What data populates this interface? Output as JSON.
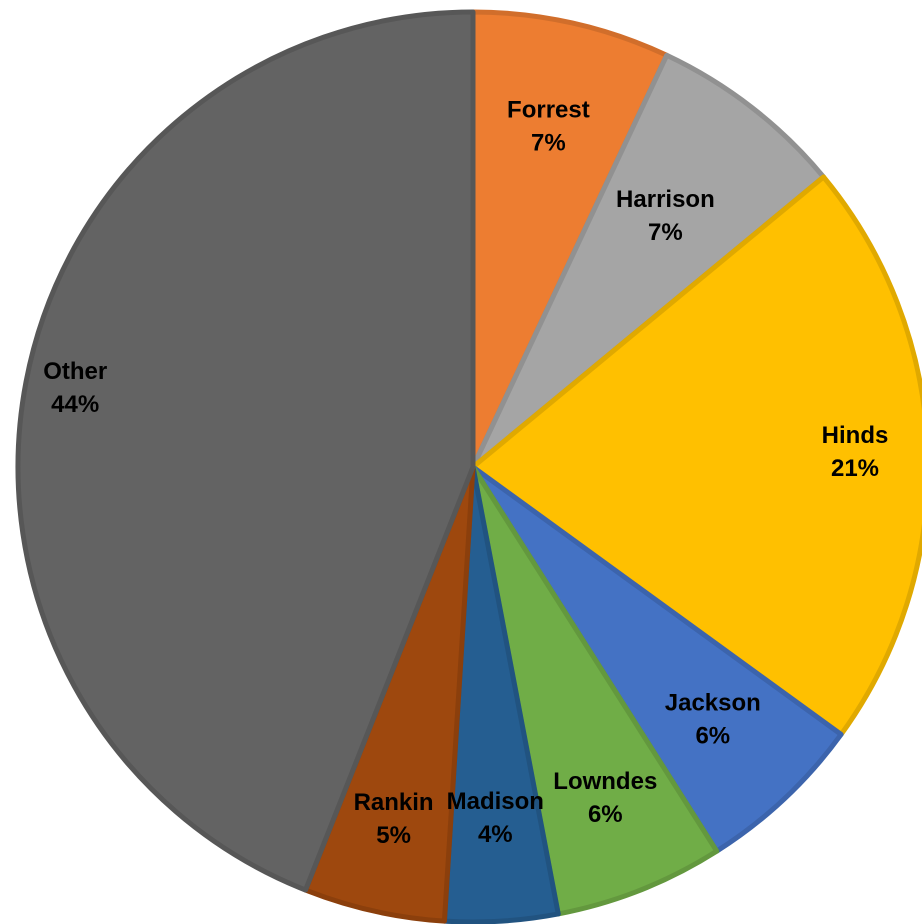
{
  "chart_data": {
    "type": "pie",
    "categories": [
      "Forrest",
      "Harrison",
      "Hinds",
      "Jackson",
      "Lowndes",
      "Madison",
      "Rankin",
      "Other"
    ],
    "values": [
      7,
      7,
      21,
      6,
      6,
      4,
      5,
      44
    ],
    "labels": [
      "7%",
      "7%",
      "21%",
      "6%",
      "6%",
      "4%",
      "5%",
      "44%"
    ],
    "colors": [
      "#ED7D31",
      "#A5A5A5",
      "#FFC000",
      "#4472C4",
      "#70AD47",
      "#255E91",
      "#9E480E",
      "#636363"
    ],
    "start_angle_deg": 0,
    "direction": "clockwise",
    "title": "",
    "legend": "none"
  }
}
